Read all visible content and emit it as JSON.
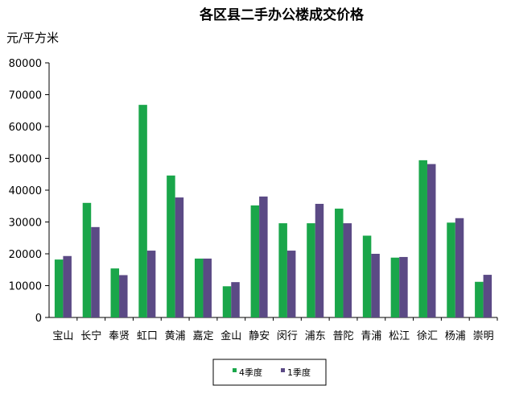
{
  "chart_data": {
    "type": "bar",
    "title": "各区县二手办公楼成交价格",
    "ylabel": "元/平方米",
    "xlabel": "",
    "ylim": [
      0,
      80000
    ],
    "yticks": [
      0,
      10000,
      20000,
      30000,
      40000,
      50000,
      60000,
      70000,
      80000
    ],
    "grid": false,
    "legend_position": "bottom",
    "categories": [
      "宝山",
      "长宁",
      "奉贤",
      "虹口",
      "黄浦",
      "嘉定",
      "金山",
      "静安",
      "闵行",
      "浦东",
      "普陀",
      "青浦",
      "松江",
      "徐汇",
      "杨浦",
      "崇明"
    ],
    "series": [
      {
        "name": "4季度",
        "color": "#1aa64a",
        "values": [
          18200,
          36000,
          15400,
          66800,
          44600,
          18500,
          9800,
          35200,
          29600,
          29600,
          34200,
          25700,
          18800,
          49400,
          29800,
          11200
        ]
      },
      {
        "name": "1季度",
        "color": "#5b4a85",
        "values": [
          19300,
          28400,
          13300,
          21000,
          37700,
          18500,
          11100,
          38000,
          21000,
          35700,
          29600,
          20000,
          19000,
          48200,
          31200,
          13400
        ]
      }
    ]
  }
}
